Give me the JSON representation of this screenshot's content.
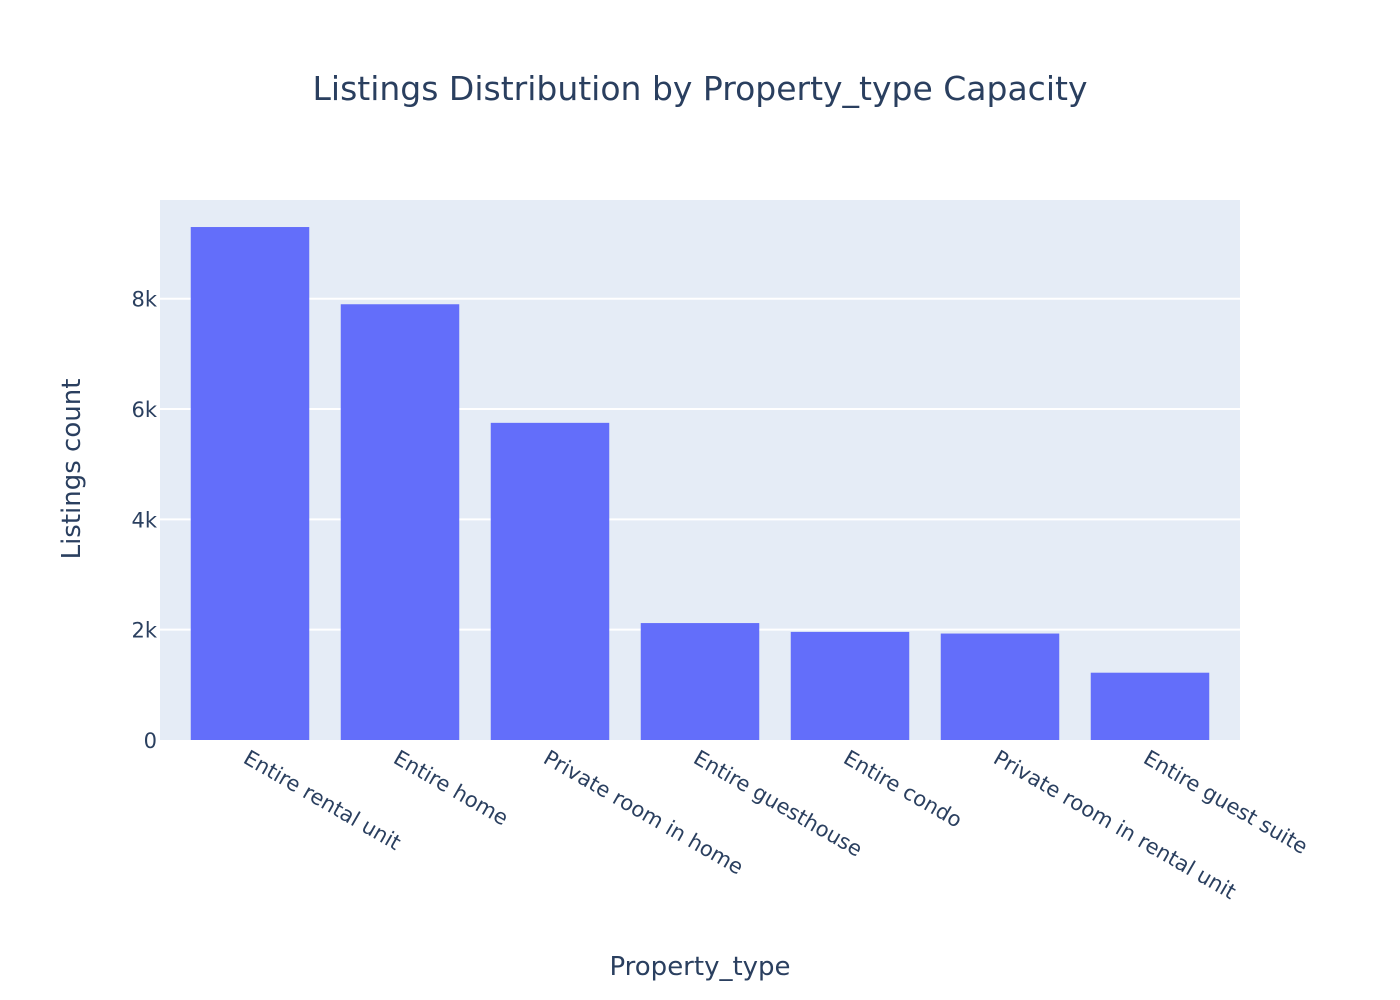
{
  "chart_data": {
    "type": "bar",
    "title": "Listings Distribution by Property_type Capacity",
    "xlabel": "Property_type",
    "ylabel": "Listings count",
    "categories": [
      "Entire rental unit",
      "Entire home",
      "Private room in home",
      "Entire guesthouse",
      "Entire condo",
      "Private room in rental unit",
      "Entire guest suite"
    ],
    "values": [
      9300,
      7900,
      5750,
      2120,
      1960,
      1930,
      1220
    ],
    "ylim": [
      0,
      9790
    ],
    "yticks": [
      0,
      2000,
      4000,
      6000,
      8000
    ],
    "ytick_labels": [
      "0",
      "2k",
      "4k",
      "6k",
      "8k"
    ],
    "grid": true,
    "legend": "none",
    "colors": {
      "bar": "#636efa",
      "plot_background": "#e5ecf6",
      "gridline": "#ffffff",
      "text": "#2a3f5f"
    }
  }
}
